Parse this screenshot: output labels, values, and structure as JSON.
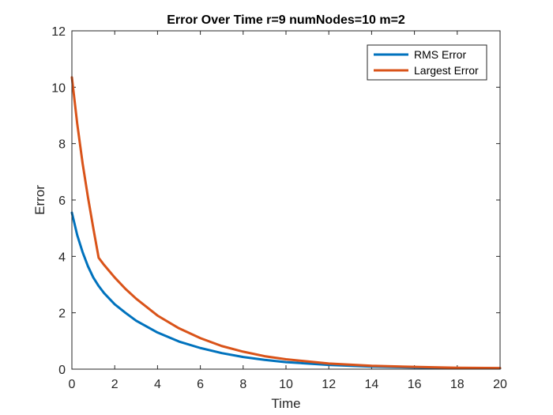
{
  "chart_data": {
    "type": "line",
    "title": "Error Over Time r=9 numNodes=10 m=2",
    "xlabel": "Time",
    "ylabel": "Error",
    "xlim": [
      0,
      20
    ],
    "ylim": [
      0,
      12
    ],
    "xticks": [
      0,
      2,
      4,
      6,
      8,
      10,
      12,
      14,
      16,
      18,
      20
    ],
    "yticks": [
      0,
      2,
      4,
      6,
      8,
      10,
      12
    ],
    "grid": false,
    "legend_position": "top-right",
    "series": [
      {
        "name": "RMS Error",
        "color": "#0072BD",
        "x": [
          0,
          0.25,
          0.5,
          0.75,
          1,
          1.25,
          1.5,
          2,
          2.5,
          3,
          4,
          5,
          6,
          7,
          8,
          9,
          10,
          12,
          14,
          16,
          18,
          20
        ],
        "y": [
          5.55,
          4.75,
          4.15,
          3.65,
          3.25,
          2.95,
          2.7,
          2.3,
          2.0,
          1.72,
          1.3,
          0.98,
          0.75,
          0.57,
          0.43,
          0.33,
          0.25,
          0.15,
          0.09,
          0.06,
          0.04,
          0.03
        ]
      },
      {
        "name": "Largest Error",
        "color": "#D95319",
        "x": [
          0,
          0.25,
          0.5,
          0.75,
          1,
          1.25,
          1.5,
          2,
          2.5,
          3,
          4,
          5,
          6,
          7,
          8,
          9,
          10,
          12,
          14,
          16,
          18,
          20
        ],
        "y": [
          10.35,
          8.7,
          7.3,
          6.1,
          5.0,
          3.95,
          3.7,
          3.25,
          2.85,
          2.5,
          1.9,
          1.45,
          1.1,
          0.82,
          0.62,
          0.46,
          0.35,
          0.2,
          0.12,
          0.08,
          0.05,
          0.04
        ]
      }
    ]
  }
}
